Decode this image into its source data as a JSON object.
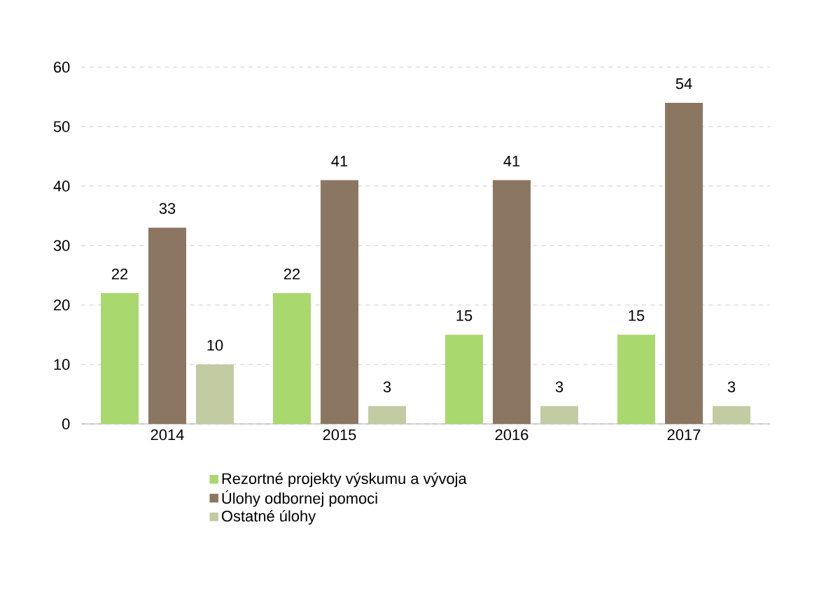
{
  "chart_data": {
    "type": "bar",
    "categories": [
      "2014",
      "2015",
      "2016",
      "2017"
    ],
    "series": [
      {
        "name": "Rezortné projekty výskumu a vývoja",
        "color": "#a9d86e",
        "values": [
          22,
          22,
          15,
          15
        ]
      },
      {
        "name": "Úlohy odbornej pomoci",
        "color": "#8b7761",
        "values": [
          33,
          41,
          41,
          54
        ]
      },
      {
        "name": "Ostatné úlohy",
        "color": "#c3cba3",
        "values": [
          10,
          3,
          3,
          3
        ]
      }
    ],
    "ylim": [
      0,
      60
    ],
    "yticks": [
      0,
      10,
      20,
      30,
      40,
      50,
      60
    ],
    "grid": "y",
    "legend": "bottom",
    "data_labels": true
  }
}
